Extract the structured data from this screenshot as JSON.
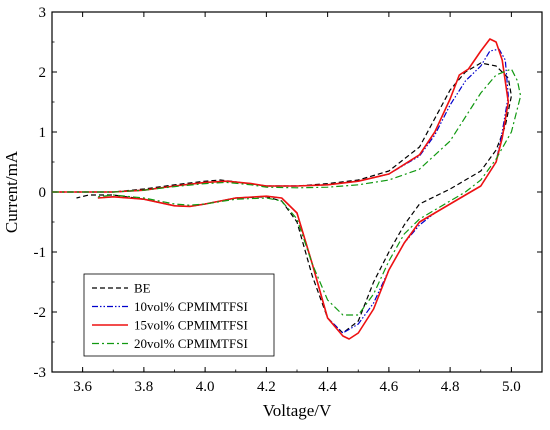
{
  "chart_data": {
    "type": "line",
    "title": "",
    "xlabel": "Voltage/V",
    "ylabel": "Current/mA",
    "xlim": [
      3.5,
      5.1
    ],
    "ylim": [
      -3,
      3
    ],
    "xticks": [
      "3.6",
      "3.8",
      "4.0",
      "4.2",
      "4.4",
      "4.6",
      "4.8",
      "5.0"
    ],
    "xtick_values": [
      3.6,
      3.8,
      4.0,
      4.2,
      4.4,
      4.6,
      4.8,
      5.0
    ],
    "yticks": [
      "-3",
      "-2",
      "-1",
      "0",
      "1",
      "2",
      "3"
    ],
    "ytick_values": [
      -3,
      -2,
      -1,
      0,
      1,
      2,
      3
    ],
    "grid": false,
    "legend_position": "bottom-left",
    "series": [
      {
        "name": "BE",
        "color": "#000000",
        "dash": "dashed",
        "x": [
          3.5,
          3.6,
          3.7,
          3.8,
          3.9,
          4.0,
          4.05,
          4.1,
          4.2,
          4.3,
          4.4,
          4.5,
          4.6,
          4.7,
          4.8,
          4.85,
          4.9,
          4.95,
          4.99,
          5.0,
          4.98,
          4.95,
          4.9,
          4.8,
          4.7,
          4.65,
          4.6,
          4.55,
          4.5,
          4.45,
          4.4,
          4.35,
          4.3,
          4.25,
          4.2,
          4.1,
          4.0,
          3.95,
          3.9,
          3.8,
          3.7,
          3.62,
          3.58
        ],
        "y": [
          0.0,
          0.0,
          0.0,
          0.05,
          0.12,
          0.18,
          0.2,
          0.17,
          0.1,
          0.1,
          0.14,
          0.2,
          0.35,
          0.75,
          1.7,
          2.0,
          2.15,
          2.1,
          1.9,
          1.6,
          1.1,
          0.7,
          0.35,
          0.05,
          -0.2,
          -0.55,
          -1.0,
          -1.5,
          -2.15,
          -2.35,
          -2.1,
          -1.4,
          -0.5,
          -0.15,
          -0.08,
          -0.1,
          -0.2,
          -0.24,
          -0.23,
          -0.12,
          -0.05,
          -0.05,
          -0.1
        ]
      },
      {
        "name": "10vol% CPMIMTFSI",
        "color": "#0000cc",
        "dash": "dashdotdot",
        "x": [
          3.5,
          3.6,
          3.7,
          3.8,
          3.9,
          4.0,
          4.07,
          4.15,
          4.2,
          4.3,
          4.4,
          4.5,
          4.6,
          4.7,
          4.75,
          4.8,
          4.85,
          4.9,
          4.93,
          4.96,
          4.98,
          4.99,
          4.97,
          4.95,
          4.9,
          4.85,
          4.8,
          4.75,
          4.7,
          4.65,
          4.6,
          4.55,
          4.5,
          4.45,
          4.4,
          4.35,
          4.3,
          4.25,
          4.2,
          4.1,
          4.0,
          3.95,
          3.9,
          3.8,
          3.7,
          3.65
        ],
        "y": [
          0.0,
          0.0,
          0.0,
          0.03,
          0.1,
          0.16,
          0.18,
          0.14,
          0.1,
          0.1,
          0.12,
          0.18,
          0.3,
          0.6,
          0.95,
          1.45,
          1.85,
          2.1,
          2.35,
          2.38,
          2.2,
          1.6,
          1.0,
          0.5,
          0.1,
          -0.05,
          -0.2,
          -0.35,
          -0.55,
          -0.85,
          -1.3,
          -1.85,
          -2.2,
          -2.35,
          -2.1,
          -1.2,
          -0.35,
          -0.1,
          -0.07,
          -0.1,
          -0.2,
          -0.24,
          -0.23,
          -0.12,
          -0.08,
          -0.1
        ]
      },
      {
        "name": "15vol% CPMIMTFSI",
        "color": "#ee1111",
        "dash": "solid",
        "x": [
          3.5,
          3.6,
          3.7,
          3.8,
          3.9,
          4.0,
          4.07,
          4.15,
          4.2,
          4.3,
          4.4,
          4.5,
          4.6,
          4.7,
          4.75,
          4.8,
          4.83,
          4.86,
          4.9,
          4.93,
          4.95,
          4.97,
          4.99,
          4.97,
          4.95,
          4.9,
          4.85,
          4.8,
          4.75,
          4.7,
          4.65,
          4.6,
          4.55,
          4.5,
          4.47,
          4.45,
          4.4,
          4.35,
          4.3,
          4.25,
          4.2,
          4.1,
          4.0,
          3.95,
          3.9,
          3.8,
          3.7,
          3.65
        ],
        "y": [
          0.0,
          0.0,
          0.0,
          0.03,
          0.1,
          0.16,
          0.18,
          0.14,
          0.1,
          0.1,
          0.12,
          0.18,
          0.3,
          0.62,
          1.0,
          1.55,
          1.95,
          2.05,
          2.35,
          2.55,
          2.5,
          2.2,
          1.5,
          0.9,
          0.5,
          0.1,
          -0.05,
          -0.2,
          -0.35,
          -0.5,
          -0.85,
          -1.3,
          -1.95,
          -2.35,
          -2.45,
          -2.4,
          -2.1,
          -1.2,
          -0.35,
          -0.1,
          -0.07,
          -0.1,
          -0.2,
          -0.24,
          -0.23,
          -0.12,
          -0.08,
          -0.1
        ]
      },
      {
        "name": "20vol% CPMIMTFSI",
        "color": "#119911",
        "dash": "dashdot",
        "x": [
          3.5,
          3.6,
          3.7,
          3.8,
          3.9,
          4.0,
          4.07,
          4.15,
          4.2,
          4.3,
          4.4,
          4.5,
          4.6,
          4.7,
          4.8,
          4.85,
          4.9,
          4.95,
          5.0,
          5.02,
          5.03,
          5.0,
          4.95,
          4.9,
          4.85,
          4.8,
          4.75,
          4.7,
          4.65,
          4.6,
          4.55,
          4.5,
          4.45,
          4.4,
          4.35,
          4.3,
          4.25,
          4.2,
          4.1,
          4.0,
          3.95,
          3.9,
          3.85,
          3.8,
          3.7,
          3.65
        ],
        "y": [
          0.0,
          0.0,
          0.0,
          0.03,
          0.09,
          0.14,
          0.16,
          0.12,
          0.08,
          0.07,
          0.08,
          0.12,
          0.2,
          0.38,
          0.85,
          1.25,
          1.65,
          1.95,
          2.05,
          1.85,
          1.6,
          1.0,
          0.55,
          0.2,
          0.0,
          -0.15,
          -0.3,
          -0.45,
          -0.7,
          -1.15,
          -1.7,
          -2.05,
          -2.05,
          -1.8,
          -1.2,
          -0.45,
          -0.15,
          -0.1,
          -0.12,
          -0.2,
          -0.22,
          -0.2,
          -0.15,
          -0.1,
          -0.05,
          -0.08
        ]
      }
    ]
  }
}
